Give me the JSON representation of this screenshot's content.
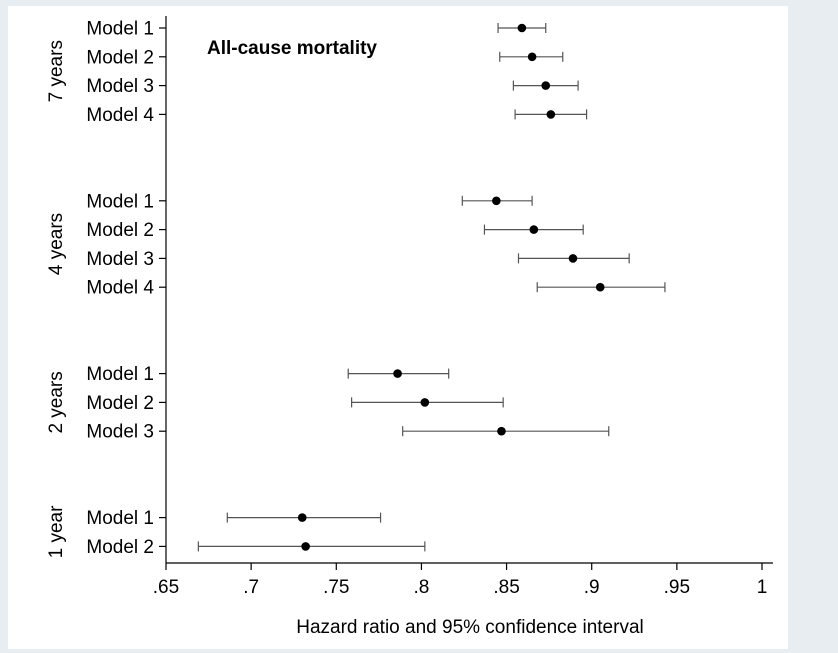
{
  "chart_data": {
    "type": "forest",
    "title": "All-cause mortality",
    "xlabel": "Hazard ratio and 95% confidence interval",
    "xlim": [
      0.65,
      1.0
    ],
    "xticks": [
      0.65,
      0.7,
      0.75,
      0.8,
      0.85,
      0.9,
      0.95,
      1.0
    ],
    "xtick_labels": [
      ".65",
      ".7",
      ".75",
      ".8",
      ".85",
      ".9",
      ".95",
      "1"
    ],
    "groups": [
      {
        "label": "7 years",
        "rows": [
          {
            "label": "Model 1",
            "hr": 0.859,
            "lower": 0.845,
            "upper": 0.873
          },
          {
            "label": "Model 2",
            "hr": 0.865,
            "lower": 0.846,
            "upper": 0.883
          },
          {
            "label": "Model 3",
            "hr": 0.873,
            "lower": 0.854,
            "upper": 0.892
          },
          {
            "label": "Model 4",
            "hr": 0.876,
            "lower": 0.855,
            "upper": 0.897
          }
        ]
      },
      {
        "label": "4 years",
        "rows": [
          {
            "label": "Model 1",
            "hr": 0.844,
            "lower": 0.824,
            "upper": 0.865
          },
          {
            "label": "Model 2",
            "hr": 0.866,
            "lower": 0.837,
            "upper": 0.895
          },
          {
            "label": "Model 3",
            "hr": 0.889,
            "lower": 0.857,
            "upper": 0.922
          },
          {
            "label": "Model 4",
            "hr": 0.905,
            "lower": 0.868,
            "upper": 0.943
          }
        ]
      },
      {
        "label": "2 years",
        "rows": [
          {
            "label": "Model 1",
            "hr": 0.786,
            "lower": 0.757,
            "upper": 0.816
          },
          {
            "label": "Model 2",
            "hr": 0.802,
            "lower": 0.759,
            "upper": 0.848
          },
          {
            "label": "Model 3",
            "hr": 0.847,
            "lower": 0.789,
            "upper": 0.91
          }
        ]
      },
      {
        "label": "1 year",
        "rows": [
          {
            "label": "Model 1",
            "hr": 0.73,
            "lower": 0.686,
            "upper": 0.776
          },
          {
            "label": "Model 2",
            "hr": 0.732,
            "lower": 0.669,
            "upper": 0.802
          }
        ]
      }
    ]
  }
}
